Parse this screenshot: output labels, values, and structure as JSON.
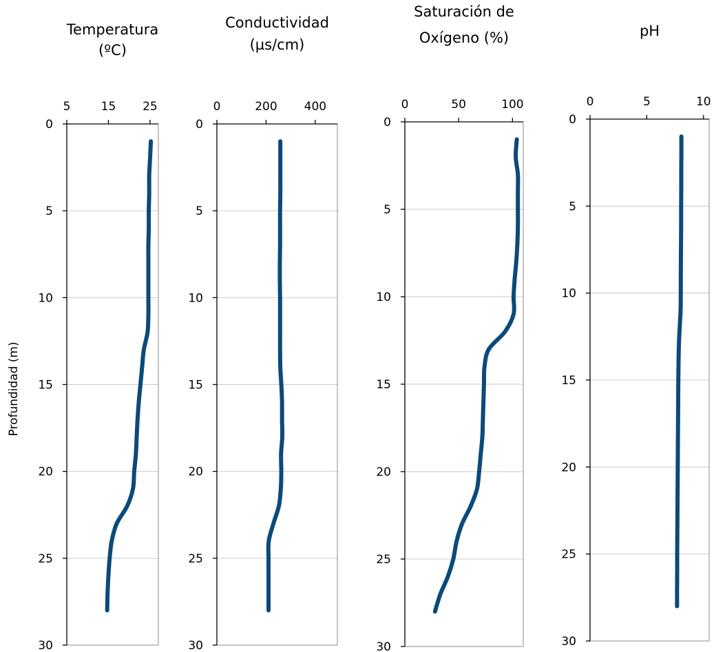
{
  "figure": {
    "ylabel": "Profundidad (m)"
  },
  "chart_data": [
    {
      "type": "line",
      "title_lines": [
        "Temperatura",
        "(ºC)"
      ],
      "xlim": [
        5,
        27
      ],
      "xticks": [
        5,
        15,
        25
      ],
      "ylim": [
        0,
        30
      ],
      "yticks": [
        0,
        5,
        10,
        15,
        20,
        25,
        30
      ],
      "y_inverted": true,
      "grid": "horizontal",
      "color": "#0b4a7a",
      "x": [
        25.2,
        25,
        24.8,
        24.8,
        24.7,
        24.7,
        24.6,
        24.6,
        24.6,
        24.6,
        24.6,
        24.4,
        23.5,
        23.1,
        22.7,
        22.3,
        22,
        21.8,
        21.6,
        21.2,
        20.9,
        19.5,
        17,
        15.8,
        15.3,
        15,
        14.8,
        14.7
      ],
      "y": [
        1,
        2,
        3,
        4,
        5,
        6,
        7,
        8,
        9,
        10,
        11,
        12,
        13,
        14,
        15,
        16,
        17,
        18,
        19,
        20,
        21,
        22,
        23,
        24,
        25,
        26,
        27,
        28
      ]
    },
    {
      "type": "line",
      "title_lines": [
        "Conductividad",
        "(µs/cm)"
      ],
      "xlim": [
        0,
        490
      ],
      "xticks": [
        0,
        200,
        400
      ],
      "ylim": [
        0,
        30
      ],
      "yticks": [
        0,
        5,
        10,
        15,
        20,
        25,
        30
      ],
      "y_inverted": true,
      "grid": "horizontal",
      "color": "#0b4a7a",
      "x": [
        258,
        258,
        258,
        258,
        257,
        257,
        257,
        256,
        256,
        257,
        257,
        257,
        257,
        258,
        262,
        265,
        265,
        266,
        261,
        262,
        260,
        252,
        230,
        211,
        210,
        210,
        210,
        210
      ],
      "y": [
        1,
        2,
        3,
        4,
        5,
        6,
        7,
        8,
        9,
        10,
        11,
        12,
        13,
        14,
        15,
        16,
        17,
        18,
        19,
        20,
        21,
        22,
        23,
        24,
        25,
        26,
        27,
        28
      ]
    },
    {
      "type": "line",
      "title_lines": [
        "Saturación de",
        "Oxígeno (%)"
      ],
      "xlim": [
        0,
        110
      ],
      "xticks": [
        0,
        50,
        100
      ],
      "ylim": [
        0,
        30
      ],
      "yticks": [
        0,
        5,
        10,
        15,
        20,
        25,
        30
      ],
      "y_inverted": true,
      "grid": "horizontal",
      "color": "#0b4a7a",
      "x": [
        104,
        103,
        105,
        105,
        105,
        105,
        104.5,
        103.5,
        102,
        101,
        101,
        93,
        78,
        74,
        73.5,
        73,
        72.5,
        72,
        70.5,
        69,
        67,
        61,
        53,
        48,
        45,
        40,
        33,
        28
      ],
      "y": [
        1,
        2,
        3,
        4,
        5,
        6,
        7,
        8,
        9,
        10,
        11,
        12,
        13,
        14,
        15,
        16,
        17,
        18,
        19,
        20,
        21,
        22,
        23,
        24,
        25,
        26,
        27,
        28
      ]
    },
    {
      "type": "line",
      "title_lines": [
        "pH"
      ],
      "xlim": [
        0,
        10.5
      ],
      "xticks": [
        0,
        5,
        10
      ],
      "ylim": [
        0,
        30
      ],
      "yticks": [
        0,
        5,
        10,
        15,
        20,
        25,
        30
      ],
      "y_inverted": true,
      "grid": "horizontal",
      "color": "#0b4a7a",
      "x": [
        8.05,
        8.05,
        8.04,
        8.04,
        8.03,
        8.03,
        8.02,
        8.01,
        8.0,
        8.0,
        7.98,
        7.9,
        7.83,
        7.8,
        7.78,
        7.77,
        7.76,
        7.75,
        7.74,
        7.73,
        7.72,
        7.71,
        7.7,
        7.69,
        7.68,
        7.68,
        7.67,
        7.67
      ],
      "y": [
        1,
        2,
        3,
        4,
        5,
        6,
        7,
        8,
        9,
        10,
        11,
        12,
        13,
        14,
        15,
        16,
        17,
        18,
        19,
        20,
        21,
        22,
        23,
        24,
        25,
        26,
        27,
        28
      ]
    }
  ]
}
